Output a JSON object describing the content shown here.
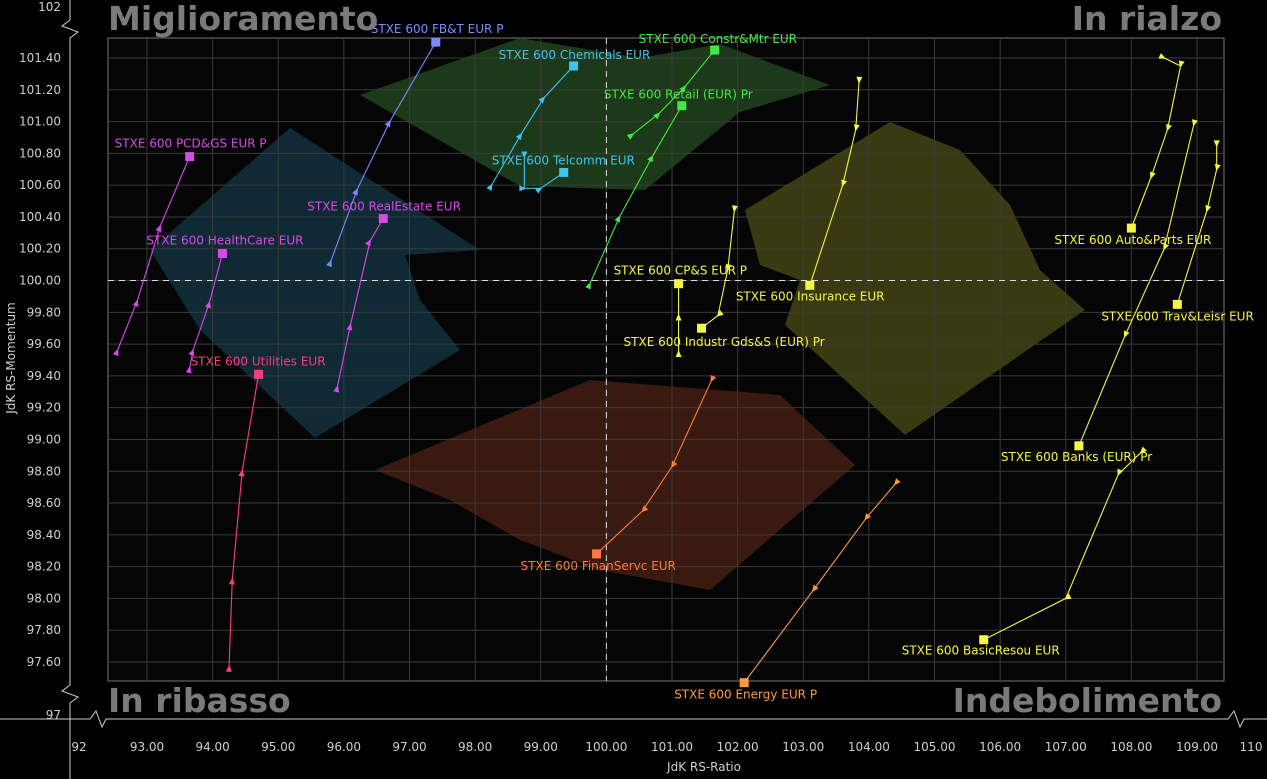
{
  "quadrants": {
    "top_left": "Miglioramento",
    "top_right": "In rialzo",
    "bottom_left": "In ribasso",
    "bottom_right": "Indebolimento"
  },
  "colors": {
    "background": "#000000",
    "plot_background": "#050505",
    "grid": "#3a3a3a",
    "improving_arrow": "#1c3a19",
    "leading_arrow": "#3a3a12",
    "weakening_arrow": "#3a1a10",
    "lagging_arrow": "#0f2a35"
  },
  "chart_data": {
    "type": "scatter",
    "xlabel": "JdK RS-Ratio",
    "ylabel": "JdK RS-Momentum",
    "xlim": [
      92,
      110
    ],
    "ylim": [
      97,
      102
    ],
    "x_center": 100,
    "y_center": 100,
    "x_ticks": [
      "92",
      "93.00",
      "94.00",
      "95.00",
      "96.00",
      "97.00",
      "98.00",
      "99.00",
      "100.00",
      "101.00",
      "102.00",
      "103.00",
      "104.00",
      "105.00",
      "106.00",
      "107.00",
      "108.00",
      "109.00",
      "110"
    ],
    "y_ticks": [
      "97",
      "97.60",
      "97.80",
      "98.00",
      "98.20",
      "98.40",
      "98.60",
      "98.80",
      "99.00",
      "99.20",
      "99.40",
      "99.60",
      "99.80",
      "100.00",
      "100.20",
      "100.40",
      "100.60",
      "100.80",
      "101.00",
      "101.20",
      "101.40",
      "102"
    ],
    "grid": true,
    "legend": "none",
    "series": [
      {
        "name": "STXE 600 FB&T EUR P",
        "color": "#7b8cff",
        "trail": [
          [
            95.8,
            100.12
          ],
          [
            96.2,
            100.57
          ],
          [
            96.7,
            101.0
          ],
          [
            97.4,
            101.5
          ]
        ]
      },
      {
        "name": "STXE 600 Chemicals EUR",
        "color": "#3ec4f0",
        "trail": [
          [
            98.25,
            100.6
          ],
          [
            98.7,
            100.92
          ],
          [
            99.05,
            101.15
          ],
          [
            99.5,
            101.35
          ]
        ]
      },
      {
        "name": "STXE 600 Constr&Mtr EUR",
        "color": "#44e844",
        "trail": [
          [
            100.4,
            100.92
          ],
          [
            100.8,
            101.05
          ],
          [
            101.2,
            101.22
          ],
          [
            101.65,
            101.45
          ]
        ]
      },
      {
        "name": "STXE 600 Retail (EUR) Pr",
        "color": "#44e844",
        "trail": [
          [
            99.75,
            99.98
          ],
          [
            100.2,
            100.4
          ],
          [
            100.7,
            100.78
          ],
          [
            101.15,
            101.1
          ]
        ]
      },
      {
        "name": "STXE 600 Telcomm EUR",
        "color": "#3ec4f0",
        "trail": [
          [
            98.75,
            100.78
          ],
          [
            98.75,
            100.58
          ],
          [
            99.0,
            100.58
          ],
          [
            99.35,
            100.68
          ]
        ]
      },
      {
        "name": "STXE 600 PCD&GS EUR P",
        "color": "#d84ae8",
        "trail": [
          [
            92.55,
            99.56
          ],
          [
            92.85,
            99.87
          ],
          [
            93.2,
            100.34
          ],
          [
            93.65,
            100.78
          ]
        ]
      },
      {
        "name": "STXE 600 RealEstate EUR",
        "color": "#d84ae8",
        "trail": [
          [
            95.9,
            99.33
          ],
          [
            96.1,
            99.72
          ],
          [
            96.4,
            100.25
          ],
          [
            96.6,
            100.39
          ]
        ]
      },
      {
        "name": "STXE 600 HealthCare EUR",
        "color": "#d84ae8",
        "trail": [
          [
            93.65,
            99.45
          ],
          [
            93.7,
            99.56
          ],
          [
            93.95,
            99.86
          ],
          [
            94.15,
            100.17
          ]
        ]
      },
      {
        "name": "STXE 600 Utilities EUR",
        "color": "#ff3c80",
        "trail": [
          [
            94.25,
            97.57
          ],
          [
            94.3,
            98.12
          ],
          [
            94.45,
            98.8
          ],
          [
            94.7,
            99.41
          ]
        ]
      },
      {
        "name": "STXE 600 FinanServc EUR",
        "color": "#ff7a3c",
        "trail": [
          [
            101.6,
            99.37
          ],
          [
            101.0,
            98.83
          ],
          [
            100.55,
            98.55
          ],
          [
            99.85,
            98.28
          ]
        ]
      },
      {
        "name": "STXE 600 CP&S EUR P",
        "color": "#f5f546",
        "trail": [
          [
            101.1,
            99.55
          ],
          [
            101.1,
            99.78
          ],
          [
            101.1,
            99.98
          ]
        ]
      },
      {
        "name": "STXE 600 Industr Gds&S (EUR) Pr",
        "color": "#f5f546",
        "trail": [
          [
            101.95,
            100.44
          ],
          [
            101.85,
            100.07
          ],
          [
            101.7,
            99.78
          ],
          [
            101.45,
            99.7
          ]
        ]
      },
      {
        "name": "STXE 600 Insurance EUR",
        "color": "#f5f546",
        "trail": [
          [
            103.85,
            101.25
          ],
          [
            103.8,
            100.95
          ],
          [
            103.6,
            100.6
          ],
          [
            103.1,
            99.97
          ]
        ]
      },
      {
        "name": "STXE 600 Auto&Parts EUR",
        "color": "#f5f546",
        "trail": [
          [
            108.5,
            101.4
          ],
          [
            108.75,
            101.35
          ],
          [
            108.55,
            100.95
          ],
          [
            108.3,
            100.65
          ],
          [
            108.0,
            100.33
          ]
        ]
      },
      {
        "name": "STXE 600 Trav&Leisr EUR",
        "color": "#f5f546",
        "trail": [
          [
            109.3,
            100.85
          ],
          [
            109.3,
            100.7
          ],
          [
            109.15,
            100.44
          ],
          [
            108.7,
            99.85
          ]
        ]
      },
      {
        "name": "STXE 600 Banks (EUR) Pr",
        "color": "#f5f546",
        "trail": [
          [
            108.95,
            100.98
          ],
          [
            108.5,
            100.2
          ],
          [
            107.9,
            99.65
          ],
          [
            107.2,
            98.96
          ]
        ]
      },
      {
        "name": "STXE 600 BasicResou EUR",
        "color": "#f5f546",
        "trail": [
          [
            108.15,
            98.92
          ],
          [
            107.8,
            98.78
          ],
          [
            107.0,
            98.0
          ],
          [
            105.75,
            97.74
          ]
        ]
      },
      {
        "name": "STXE 600 Energy EUR P",
        "color": "#ff9a3c",
        "trail": [
          [
            104.4,
            98.72
          ],
          [
            103.95,
            98.5
          ],
          [
            103.15,
            98.05
          ],
          [
            102.1,
            97.47
          ]
        ]
      }
    ]
  }
}
